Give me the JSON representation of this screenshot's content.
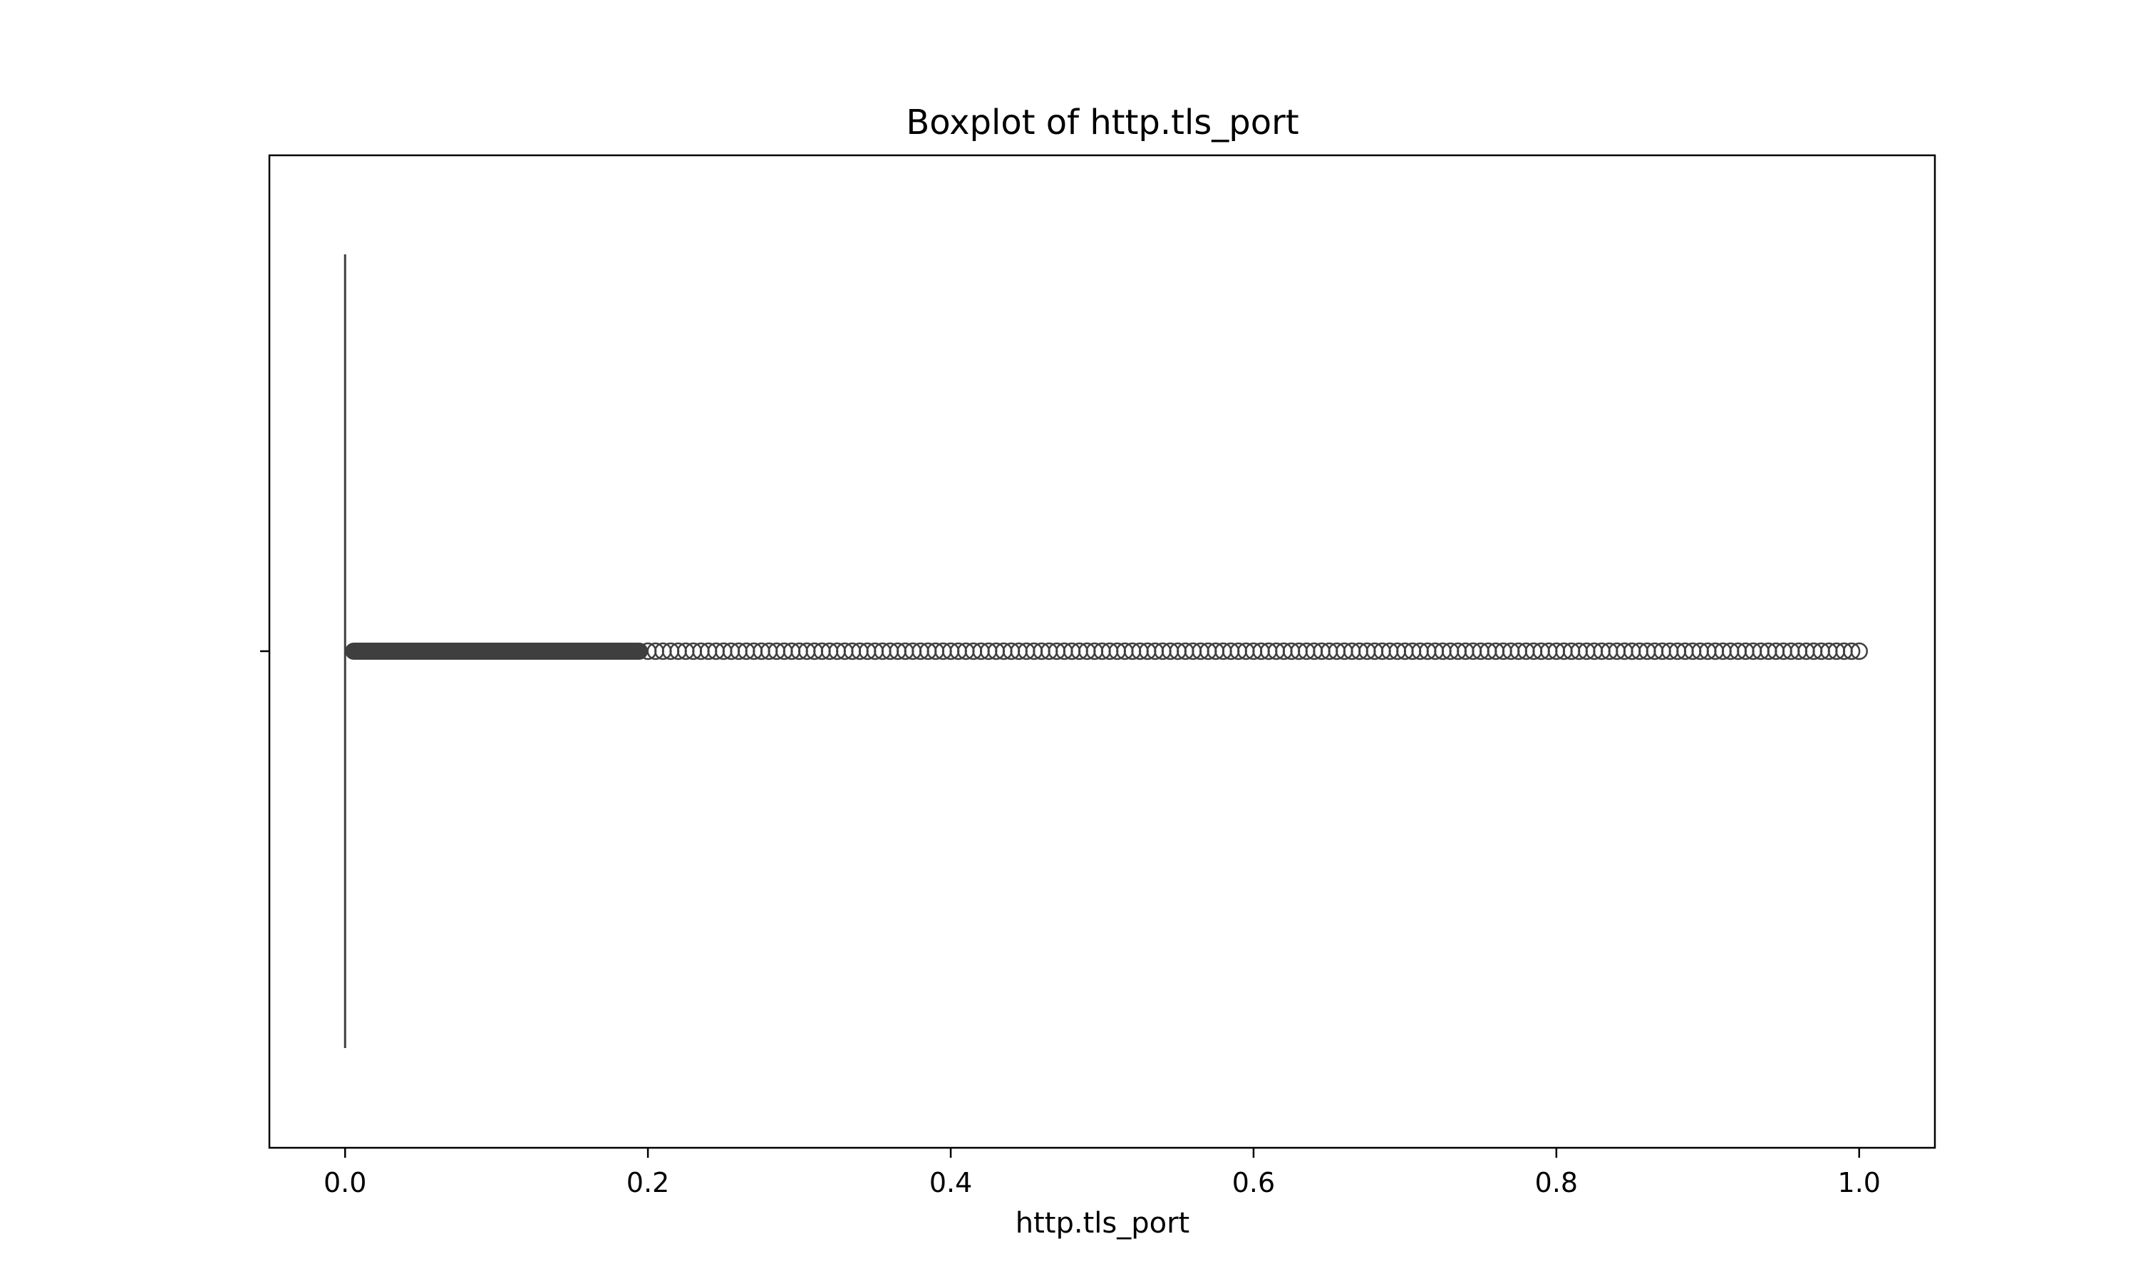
{
  "chart_data": {
    "type": "boxplot",
    "title": "Boxplot of http.tls_port",
    "xlabel": "http.tls_port",
    "ylabel": "",
    "xlim": [
      -0.05,
      1.05
    ],
    "xticks": [
      0.0,
      0.2,
      0.4,
      0.6,
      0.8,
      1.0
    ],
    "xtick_labels": [
      "0.0",
      "0.2",
      "0.4",
      "0.6",
      "0.8",
      "1.0"
    ],
    "orientation": "horizontal",
    "grid": false,
    "box": {
      "min": 0.0,
      "q1": 0.0,
      "median": 0.0,
      "q3": 0.0,
      "max": 0.0
    },
    "outliers": {
      "dense_range": [
        0.0,
        0.2
      ],
      "sparse_range": [
        0.2,
        1.0
      ],
      "sparse_step": 0.005
    },
    "colors": {
      "box": "#3f3f3f",
      "marker_edge": "#3f3f3f",
      "axes": "#000000",
      "background": "#ffffff"
    }
  }
}
